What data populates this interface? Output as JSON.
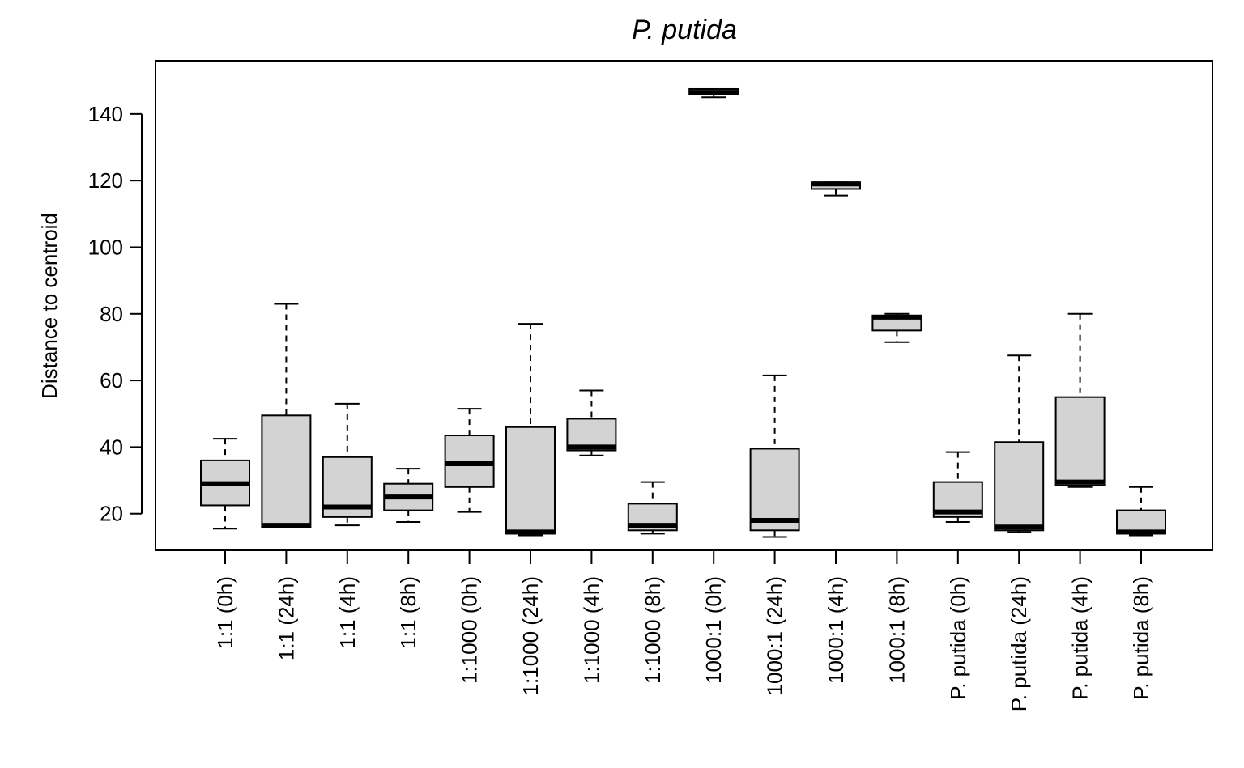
{
  "chart_data": {
    "type": "boxplot",
    "title": "P. putida",
    "xlabel": "",
    "ylabel": "Distance to centroid",
    "ylim": [
      9,
      156
    ],
    "yticks": [
      20,
      40,
      60,
      80,
      100,
      120,
      140
    ],
    "grid": false,
    "legend": "none",
    "box_fill": "#d3d3d3",
    "categories": [
      "1:1 (0h)",
      "1:1 (24h)",
      "1:1 (4h)",
      "1:1 (8h)",
      "1:1000 (0h)",
      "1:1000 (24h)",
      "1:1000 (4h)",
      "1:1000 (8h)",
      "1000:1 (0h)",
      "1000:1 (24h)",
      "1000:1 (4h)",
      "1000:1 (8h)",
      "P. putida (0h)",
      "P. putida (24h)",
      "P. putida (4h)",
      "P. putida (8h)"
    ],
    "boxes": [
      {
        "min": 15.5,
        "q1": 22.5,
        "median": 29,
        "q3": 36,
        "max": 42.5
      },
      {
        "min": 16,
        "q1": 16,
        "median": 16.5,
        "q3": 49.5,
        "max": 83
      },
      {
        "min": 16.5,
        "q1": 19,
        "median": 22,
        "q3": 37,
        "max": 53
      },
      {
        "min": 17.5,
        "q1": 21,
        "median": 25,
        "q3": 29,
        "max": 33.5
      },
      {
        "min": 20.5,
        "q1": 28,
        "median": 35,
        "q3": 43.5,
        "max": 51.5
      },
      {
        "min": 13.5,
        "q1": 14,
        "median": 14.5,
        "q3": 46,
        "max": 77
      },
      {
        "min": 37.5,
        "q1": 39,
        "median": 40,
        "q3": 48.5,
        "max": 57
      },
      {
        "min": 14,
        "q1": 15,
        "median": 16.5,
        "q3": 23,
        "max": 29.5
      },
      {
        "min": 145,
        "q1": 146,
        "median": 146.5,
        "q3": 147.5,
        "max": 147.5
      },
      {
        "min": 13,
        "q1": 15,
        "median": 18,
        "q3": 39.5,
        "max": 61.5
      },
      {
        "min": 115.5,
        "q1": 117.5,
        "median": 119,
        "q3": 119.5,
        "max": 119.5
      },
      {
        "min": 71.5,
        "q1": 75,
        "median": 79,
        "q3": 79.5,
        "max": 80
      },
      {
        "min": 17.5,
        "q1": 19,
        "median": 20.5,
        "q3": 29.5,
        "max": 38.5
      },
      {
        "min": 14.5,
        "q1": 15,
        "median": 16,
        "q3": 41.5,
        "max": 67.5
      },
      {
        "min": 28,
        "q1": 28.5,
        "median": 29.5,
        "q3": 55,
        "max": 80
      },
      {
        "min": 13.5,
        "q1": 14,
        "median": 14.5,
        "q3": 21,
        "max": 28
      }
    ]
  }
}
